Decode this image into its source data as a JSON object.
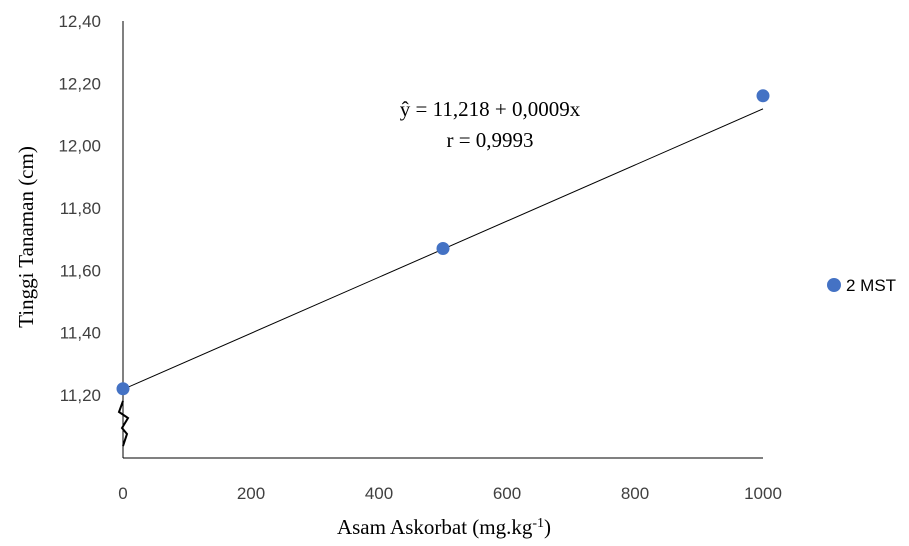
{
  "chart_data": {
    "type": "scatter",
    "x": [
      0,
      500,
      1000
    ],
    "series": [
      {
        "name": "2 MST",
        "values": [
          11.22,
          11.67,
          12.16
        ],
        "color": "#4472C4",
        "trendline": {
          "intercept": 11.218,
          "slope": 0.0009
        }
      }
    ],
    "title": "",
    "xlabel": "Asam Askorbat (mg.kg",
    "xlabel_superscript": "-1",
    "xlabel_suffix": ")",
    "ylabel": "Tinggi Tanaman (cm)",
    "xlim": [
      0,
      1000
    ],
    "ylim": [
      11.0,
      12.4
    ],
    "xticks": [
      "0",
      "200",
      "400",
      "600",
      "800",
      "1000"
    ],
    "yticks": [
      "11,20",
      "11,40",
      "11,60",
      "11,80",
      "12,00",
      "12,20",
      "12,40"
    ],
    "equation": "ŷ = 11,218 + 0,0009x",
    "r_text": "r = 0,9993",
    "axis_break": true,
    "grid": false,
    "legend_position": "right"
  }
}
